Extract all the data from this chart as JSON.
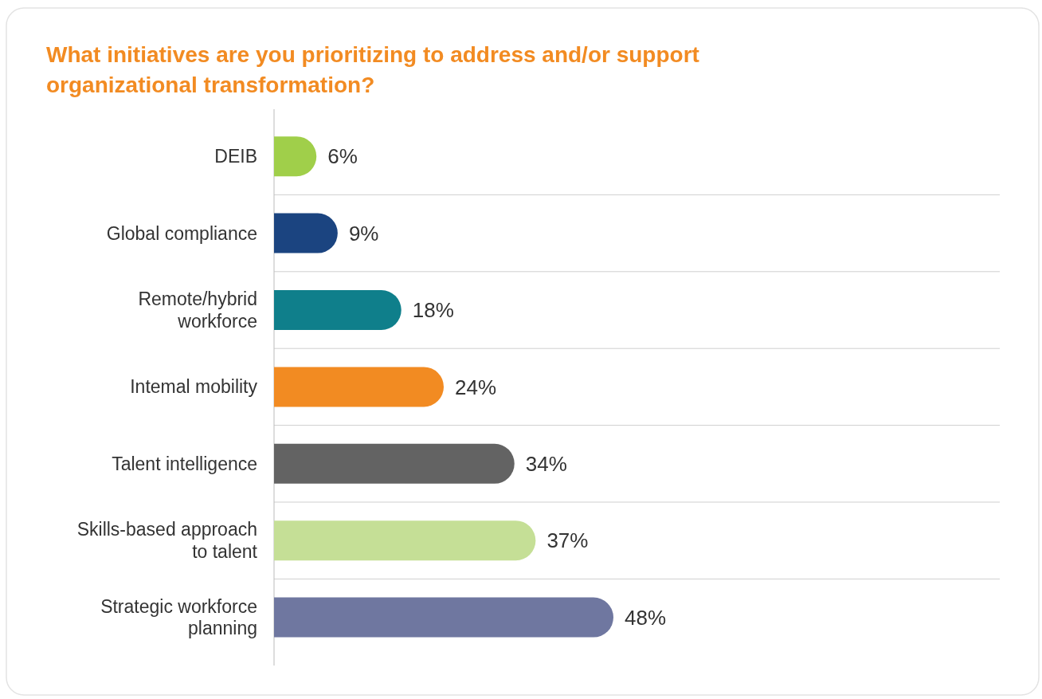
{
  "chart_data": {
    "type": "bar",
    "orientation": "horizontal",
    "title": "What initiatives are you prioritizing to address and/or support organizational transformation?",
    "categories": [
      "DEIB",
      "Global compliance",
      "Remote/hybrid workforce",
      "Intemal mobility",
      "Talent intelligence",
      "Skills-based approach to talent",
      "Strategic workforce planning"
    ],
    "values": [
      6,
      9,
      18,
      24,
      34,
      37,
      48
    ],
    "colors": [
      "#a0cf4a",
      "#1b4480",
      "#0f7f8b",
      "#f28b22",
      "#636363",
      "#c5df96",
      "#6f77a0"
    ],
    "value_labels": [
      "6%",
      "9%",
      "18%",
      "24%",
      "34%",
      "37%",
      "48%"
    ],
    "grid": "y"
  }
}
